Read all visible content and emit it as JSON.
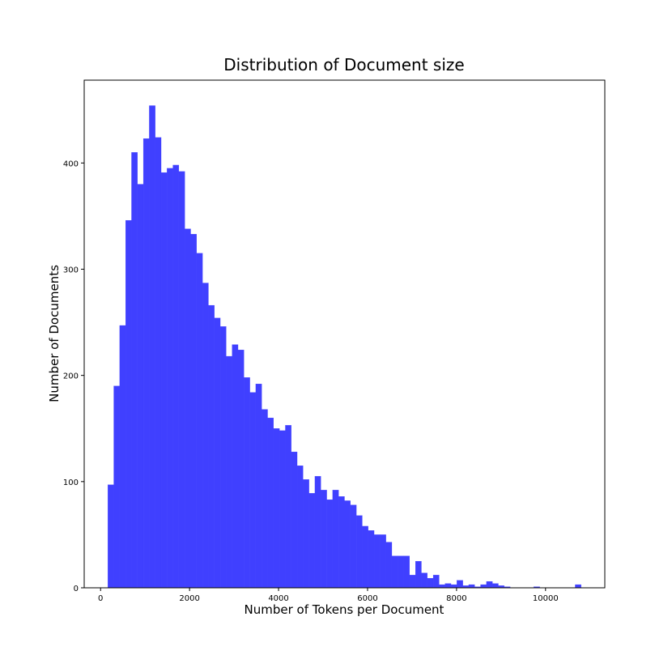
{
  "chart_data": {
    "type": "histogram",
    "title": "Distribution of Document size",
    "x_label": "Number of Tokens per Document",
    "y_label": "Number of Documents",
    "color": "#4040ff",
    "bins": [
      164,
      297,
      430,
      563,
      696,
      829,
      962,
      1095,
      1228,
      1361,
      1494,
      1626,
      1759,
      1892,
      2025,
      2158,
      2291,
      2424,
      2557,
      2690,
      2823,
      2956,
      3089,
      3222,
      3355,
      3488,
      3621,
      3754,
      3887,
      4020,
      4153,
      4285,
      4418,
      4551,
      4684,
      4817,
      4950,
      5083,
      5216,
      5349,
      5482,
      5615,
      5748,
      5881,
      6014,
      6147,
      6280,
      6413,
      6546,
      6679,
      6812,
      6944,
      7077,
      7210,
      7343,
      7476,
      7609,
      7742,
      7875,
      8008,
      8141,
      8274,
      8407,
      8540,
      8673,
      8806,
      8939,
      9072,
      9205,
      9338,
      9471,
      9603,
      9736,
      9869,
      10002,
      10135,
      10268,
      10401,
      10534,
      10667,
      10800
    ],
    "values": [
      97,
      190,
      247,
      346,
      410,
      380,
      423,
      454,
      424,
      391,
      395,
      398,
      392,
      338,
      333,
      315,
      287,
      266,
      254,
      246,
      218,
      229,
      224,
      198,
      184,
      192,
      168,
      160,
      150,
      148,
      153,
      128,
      115,
      102,
      89,
      105,
      92,
      83,
      92,
      86,
      82,
      78,
      68,
      58,
      54,
      50,
      50,
      43,
      30,
      30,
      30,
      12,
      25,
      14,
      9,
      12,
      3,
      4,
      3,
      7,
      2,
      3,
      1,
      3,
      6,
      4,
      2,
      1,
      0,
      0,
      0,
      0,
      1,
      0,
      0,
      0,
      0,
      0,
      0,
      3
    ],
    "xlim": [
      -368,
      11332
    ],
    "ylim": [
      0,
      478
    ],
    "xticks": [
      0,
      2000,
      4000,
      6000,
      8000,
      10000
    ],
    "yticks": [
      0,
      100,
      200,
      300,
      400
    ]
  }
}
